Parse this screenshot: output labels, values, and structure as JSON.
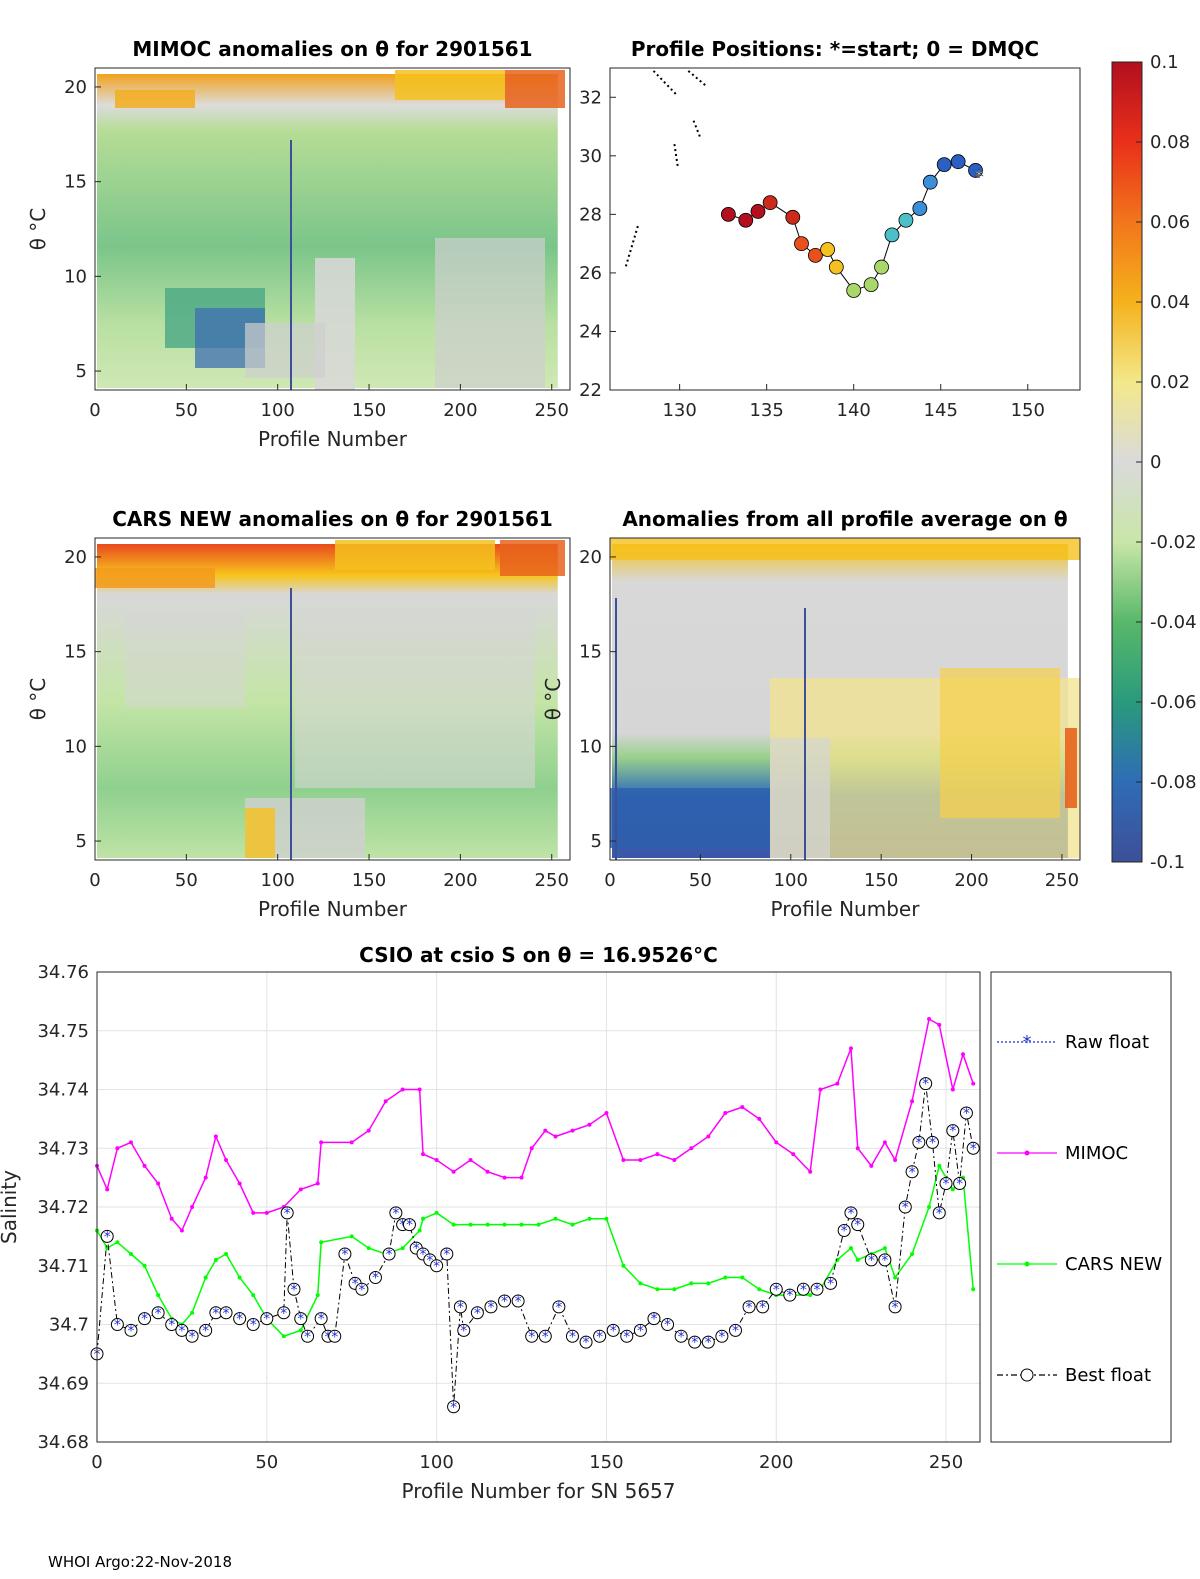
{
  "chart_data": [
    {
      "type": "heatmap",
      "title": "MIMOC anomalies on θ  for 2901561",
      "xlabel": "Profile Number",
      "ylabel": "θ °C",
      "xlim": [
        0,
        260
      ],
      "ylim": [
        4,
        21
      ],
      "xticks": [
        "0",
        "50",
        "100",
        "150",
        "200",
        "250"
      ],
      "yticks": [
        "20",
        "15",
        "10",
        "5"
      ]
    },
    {
      "type": "scatter",
      "title": "Profile Positions: *=start; 0 = DMQC",
      "xlim": [
        126,
        153
      ],
      "ylim": [
        22,
        33
      ],
      "xticks": [
        "130",
        "135",
        "140",
        "145",
        "150"
      ],
      "yticks": [
        "32",
        "30",
        "28",
        "26",
        "24",
        "22"
      ]
    },
    {
      "type": "heatmap",
      "title": "CARS NEW anomalies on θ for 2901561",
      "xlabel": "Profile Number",
      "ylabel": "θ °C",
      "xlim": [
        0,
        260
      ],
      "ylim": [
        4,
        21
      ],
      "xticks": [
        "0",
        "50",
        "100",
        "150",
        "200",
        "250"
      ],
      "yticks": [
        "20",
        "15",
        "10",
        "5"
      ]
    },
    {
      "type": "heatmap",
      "title": "Anomalies from all profile average on θ",
      "xlabel": "Profile Number",
      "ylabel": "θ °C",
      "xlim": [
        0,
        260
      ],
      "ylim": [
        4,
        21
      ],
      "xticks": [
        "0",
        "50",
        "100",
        "150",
        "200",
        "250"
      ],
      "yticks": [
        "20",
        "15",
        "10",
        "5"
      ]
    },
    {
      "type": "line",
      "title": "CSIO at csio S on θ = 16.9526°C",
      "xlabel": "Profile Number for SN 5657",
      "ylabel": "Salinity",
      "xlim": [
        0,
        260
      ],
      "ylim": [
        34.68,
        34.76
      ],
      "xticks": [
        "0",
        "50",
        "100",
        "150",
        "200",
        "250"
      ],
      "yticks": [
        "34.76",
        "34.75",
        "34.74",
        "34.73",
        "34.72",
        "34.71",
        "34.7",
        "34.69",
        "34.68"
      ],
      "legend": [
        "Raw float",
        "MIMOC",
        "CARS NEW",
        "Best float"
      ],
      "series": [
        {
          "name": "MIMOC",
          "color": "#ff00ff",
          "x": [
            0,
            3,
            6,
            10,
            14,
            18,
            22,
            25,
            28,
            32,
            35,
            38,
            42,
            46,
            50,
            55,
            60,
            65,
            66,
            75,
            80,
            85,
            90,
            95,
            96,
            100,
            105,
            110,
            115,
            120,
            125,
            128,
            132,
            135,
            140,
            145,
            150,
            155,
            160,
            165,
            170,
            175,
            180,
            185,
            190,
            195,
            200,
            205,
            210,
            213,
            218,
            222,
            224,
            228,
            232,
            235,
            240,
            245,
            248,
            252,
            255,
            258
          ],
          "y": [
            34.727,
            34.723,
            34.73,
            34.731,
            34.727,
            34.724,
            34.718,
            34.716,
            34.72,
            34.725,
            34.732,
            34.728,
            34.724,
            34.719,
            34.719,
            34.72,
            34.723,
            34.724,
            34.731,
            34.731,
            34.733,
            34.738,
            34.74,
            34.74,
            34.729,
            34.728,
            34.726,
            34.728,
            34.726,
            34.725,
            34.725,
            34.73,
            34.733,
            34.732,
            34.733,
            34.734,
            34.736,
            34.728,
            34.728,
            34.729,
            34.728,
            34.73,
            34.732,
            34.736,
            34.737,
            34.735,
            34.731,
            34.729,
            34.726,
            34.74,
            34.741,
            34.747,
            34.73,
            34.727,
            34.731,
            34.728,
            34.738,
            34.752,
            34.751,
            34.74,
            34.746,
            34.741
          ]
        },
        {
          "name": "CARS NEW",
          "color": "#00ff00",
          "x": [
            0,
            3,
            6,
            10,
            14,
            18,
            22,
            25,
            28,
            32,
            35,
            38,
            42,
            46,
            50,
            55,
            60,
            65,
            66,
            75,
            80,
            85,
            90,
            95,
            96,
            100,
            105,
            110,
            115,
            120,
            125,
            130,
            135,
            140,
            145,
            150,
            155,
            160,
            165,
            170,
            175,
            180,
            185,
            190,
            195,
            200,
            205,
            210,
            213,
            218,
            222,
            224,
            228,
            232,
            235,
            240,
            245,
            248,
            252,
            255,
            258
          ],
          "y": [
            34.716,
            34.713,
            34.714,
            34.712,
            34.71,
            34.705,
            34.701,
            34.7,
            34.702,
            34.708,
            34.711,
            34.712,
            34.708,
            34.705,
            34.701,
            34.698,
            34.699,
            34.705,
            34.714,
            34.715,
            34.713,
            34.712,
            34.713,
            34.716,
            34.718,
            34.719,
            34.717,
            34.717,
            34.717,
            34.717,
            34.717,
            34.717,
            34.718,
            34.717,
            34.718,
            34.718,
            34.71,
            34.707,
            34.706,
            34.706,
            34.707,
            34.707,
            34.708,
            34.708,
            34.706,
            34.705,
            34.705,
            34.705,
            34.706,
            34.711,
            34.713,
            34.711,
            34.712,
            34.713,
            34.708,
            34.712,
            34.72,
            34.727,
            34.723,
            34.725,
            34.706
          ]
        },
        {
          "name": "Best float",
          "color": "#000000",
          "x": [
            0,
            3,
            6,
            10,
            14,
            18,
            22,
            25,
            28,
            32,
            35,
            38,
            42,
            46,
            50,
            55,
            56,
            58,
            60,
            62,
            66,
            68,
            70,
            73,
            76,
            78,
            82,
            86,
            88,
            90,
            92,
            94,
            96,
            98,
            100,
            103,
            105,
            107,
            108,
            112,
            116,
            120,
            124,
            128,
            132,
            136,
            140,
            144,
            148,
            152,
            156,
            160,
            164,
            168,
            172,
            176,
            180,
            184,
            188,
            192,
            196,
            200,
            204,
            208,
            212,
            216,
            220,
            222,
            224,
            228,
            232,
            235,
            238,
            240,
            242,
            244,
            246,
            248,
            250,
            252,
            254,
            256,
            258
          ],
          "y": [
            34.695,
            34.715,
            34.7,
            34.699,
            34.701,
            34.702,
            34.7,
            34.699,
            34.698,
            34.699,
            34.702,
            34.702,
            34.701,
            34.7,
            34.701,
            34.702,
            34.719,
            34.706,
            34.701,
            34.698,
            34.701,
            34.698,
            34.698,
            34.712,
            34.707,
            34.706,
            34.708,
            34.712,
            34.719,
            34.717,
            34.717,
            34.713,
            34.712,
            34.711,
            34.71,
            34.712,
            34.686,
            34.703,
            34.699,
            34.702,
            34.703,
            34.704,
            34.704,
            34.698,
            34.698,
            34.703,
            34.698,
            34.697,
            34.698,
            34.699,
            34.698,
            34.699,
            34.701,
            34.7,
            34.698,
            34.697,
            34.697,
            34.698,
            34.699,
            34.703,
            34.703,
            34.706,
            34.705,
            34.706,
            34.706,
            34.707,
            34.716,
            34.719,
            34.717,
            34.711,
            34.711,
            34.703,
            34.72,
            34.726,
            34.731,
            34.741,
            34.731,
            34.719,
            34.724,
            34.733,
            34.724,
            34.736,
            34.73
          ]
        }
      ]
    }
  ],
  "colorbar": {
    "labels": [
      "0.1",
      "0.08",
      "0.06",
      "0.04",
      "0.02",
      "0",
      "-0.02",
      "-0.04",
      "-0.06",
      "-0.08",
      "-0.1"
    ]
  },
  "footer": "WHOI Argo:22-Nov-2018"
}
